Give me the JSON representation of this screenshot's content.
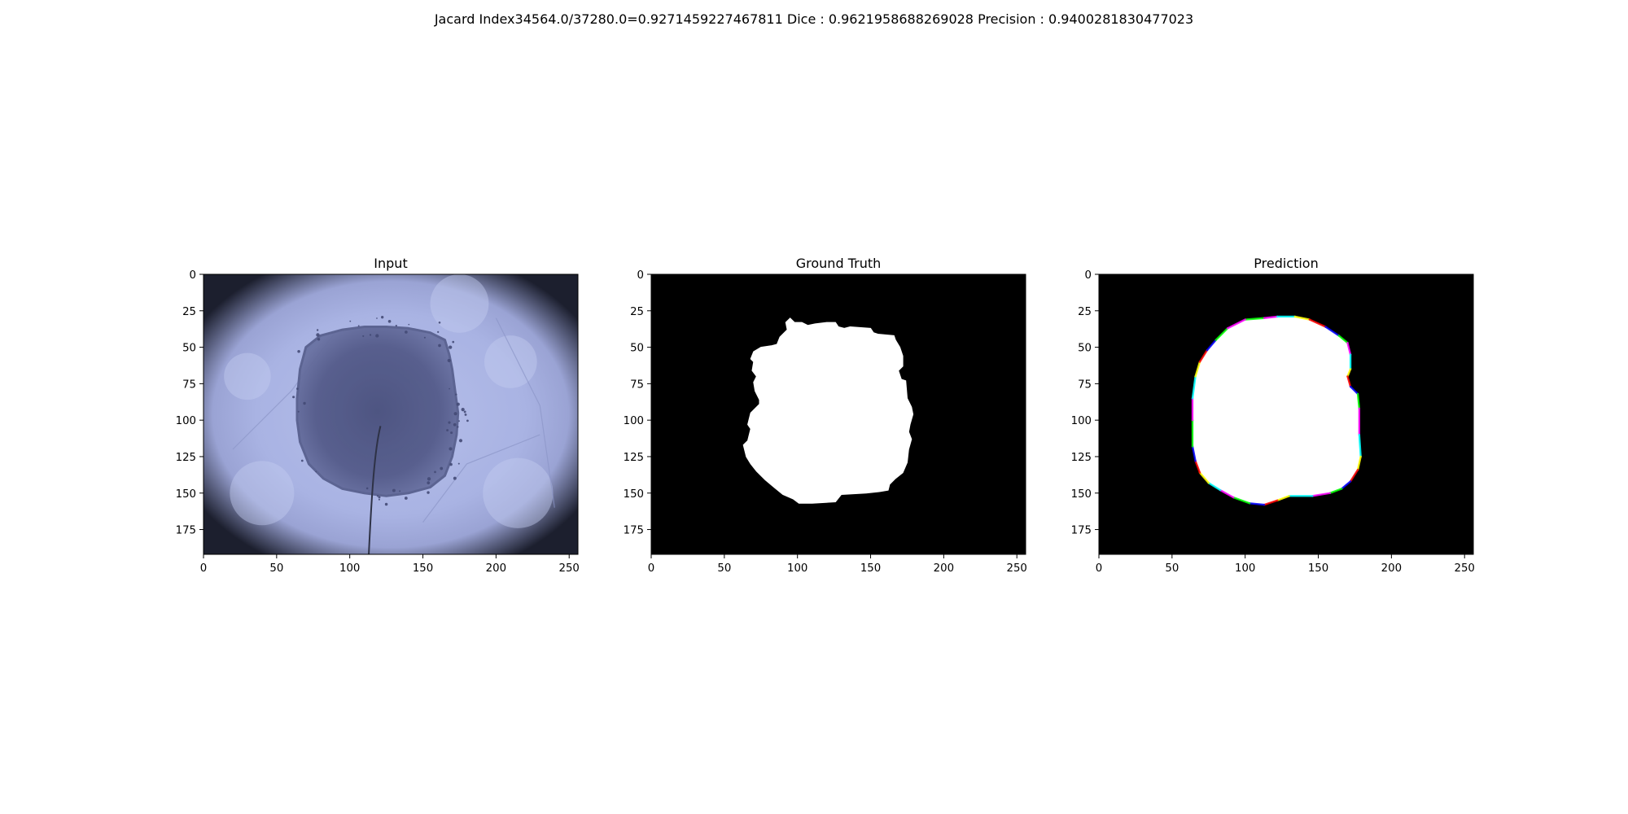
{
  "figure": {
    "suptitle": "Jacard Index34564.0/37280.0=0.9271459227467811 Dice : 0.9621958688269028 Precision : 0.9400281830477023"
  },
  "axes": {
    "x_range": [
      0,
      256
    ],
    "y_range": [
      0,
      192
    ],
    "x_ticks": [
      "0",
      "50",
      "100",
      "150",
      "200",
      "250"
    ],
    "y_ticks": [
      "0",
      "25",
      "50",
      "75",
      "100",
      "125",
      "150",
      "175"
    ]
  },
  "panels": [
    {
      "title": "Input",
      "kind": "dermoscopy-photo",
      "colors": {
        "skin": "#a9b4e4",
        "skin_light": "#c3ccf0",
        "lesion": "#5a6290",
        "lesion_dark": "#444a76",
        "vignette": "#1c1f2e",
        "hair": "#2e3246"
      }
    },
    {
      "title": "Ground Truth",
      "kind": "binary-mask",
      "colors": {
        "background": "#000000",
        "mask": "#ffffff"
      }
    },
    {
      "title": "Prediction",
      "kind": "mask-with-colored-edges",
      "colors": {
        "background": "#000000",
        "mask": "#ffffff",
        "edge_colors": [
          "#00ff00",
          "#ff00ff",
          "#00ffff",
          "#ffff00",
          "#ff0000",
          "#0000ff"
        ]
      }
    }
  ]
}
